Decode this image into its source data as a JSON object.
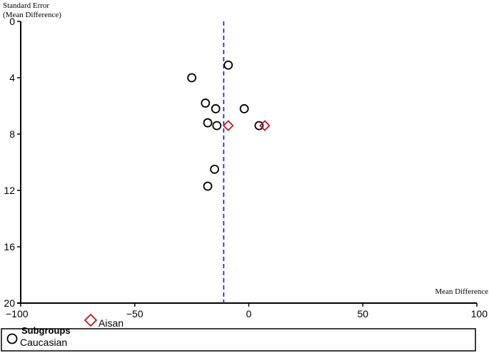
{
  "chart_data": {
    "type": "scatter",
    "title": "",
    "xlabel": "Mean Difference",
    "ylabel_line1": "Standard Error",
    "ylabel_line2": "(Mean Difference)",
    "xlim": [
      -100,
      100
    ],
    "ylim": [
      0,
      20
    ],
    "y_inverted": true,
    "x_ticks": [
      -100,
      -50,
      0,
      50,
      100
    ],
    "y_ticks": [
      0,
      4,
      8,
      12,
      16,
      20
    ],
    "reference_line_x": -11,
    "reference_line_color": "#2a2adf",
    "legend": {
      "title": "Subgroups",
      "placement": "bottom",
      "entries": [
        {
          "name": "Caucasian",
          "marker": "circle",
          "color": "#000000"
        },
        {
          "name": "Aisan",
          "marker": "diamond",
          "color": "#c0161c"
        }
      ]
    },
    "series": [
      {
        "name": "Caucasian",
        "marker": "circle",
        "color": "#000000",
        "points": [
          {
            "x": -9,
            "y": 3.1
          },
          {
            "x": -25,
            "y": 4.0
          },
          {
            "x": -19,
            "y": 5.8
          },
          {
            "x": -14.5,
            "y": 6.2
          },
          {
            "x": -2,
            "y": 6.2
          },
          {
            "x": -18,
            "y": 7.2
          },
          {
            "x": -14,
            "y": 7.4
          },
          {
            "x": 4.5,
            "y": 7.4
          },
          {
            "x": -15,
            "y": 10.5
          },
          {
            "x": -18,
            "y": 11.7
          }
        ]
      },
      {
        "name": "Aisan",
        "marker": "diamond",
        "color": "#c0161c",
        "points": [
          {
            "x": -9,
            "y": 7.4
          },
          {
            "x": 7,
            "y": 7.4
          }
        ]
      }
    ]
  }
}
